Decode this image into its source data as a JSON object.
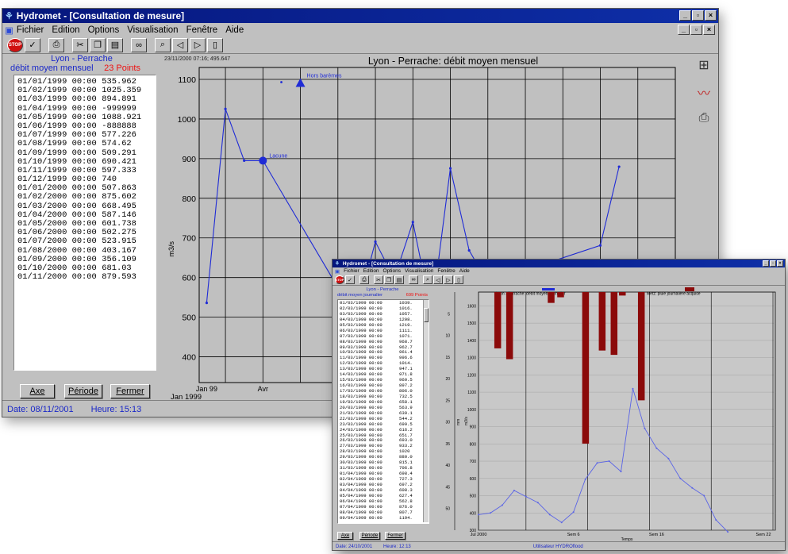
{
  "win1": {
    "title": "Hydromet - [Consultation de mesure]",
    "menu": [
      "Fichier",
      "Edition",
      "Options",
      "Visualisation",
      "Fenêtre",
      "Aide"
    ],
    "toolbar_icons": [
      "stop-icon",
      "check-icon",
      "print-icon",
      "cut-icon",
      "copy-icon",
      "paste-icon",
      "binoculars-icon",
      "zoom-icon",
      "back-icon",
      "forward-icon",
      "page-icon"
    ],
    "stop_label": "STOP",
    "cursor_readout": "23/11/2000 07:16; 495.647",
    "station": "Lyon - Perrache",
    "measure": "débit moyen mensuel",
    "points": "23 Points",
    "list": [
      {
        "date": "01/01/1999 00:00",
        "value": "535.962"
      },
      {
        "date": "01/02/1999 00:00",
        "value": "1025.359"
      },
      {
        "date": "01/03/1999 00:00",
        "value": "894.891"
      },
      {
        "date": "01/04/1999 00:00",
        "value": "-999999"
      },
      {
        "date": "01/05/1999 00:00",
        "value": "1088.921"
      },
      {
        "date": "01/06/1999 00:00",
        "value": "-888888"
      },
      {
        "date": "01/07/1999 00:00",
        "value": "577.226"
      },
      {
        "date": "01/08/1999 00:00",
        "value": "574.62"
      },
      {
        "date": "01/09/1999 00:00",
        "value": "509.291"
      },
      {
        "date": "01/10/1999 00:00",
        "value": "690.421"
      },
      {
        "date": "01/11/1999 00:00",
        "value": "597.333"
      },
      {
        "date": "01/12/1999 00:00",
        "value": "740"
      },
      {
        "date": "01/01/2000 00:00",
        "value": "507.863"
      },
      {
        "date": "01/02/2000 00:00",
        "value": "875.602"
      },
      {
        "date": "01/03/2000 00:00",
        "value": "668.495"
      },
      {
        "date": "01/04/2000 00:00",
        "value": "587.146"
      },
      {
        "date": "01/05/2000 00:00",
        "value": "601.738"
      },
      {
        "date": "01/06/2000 00:00",
        "value": "502.275"
      },
      {
        "date": "01/07/2000 00:00",
        "value": "523.915"
      },
      {
        "date": "01/08/2000 00:00",
        "value": "403.167"
      },
      {
        "date": "01/09/2000 00:00",
        "value": "356.109"
      },
      {
        "date": "01/10/2000 00:00",
        "value": "681.03"
      },
      {
        "date": "01/11/2000 00:00",
        "value": "879.593"
      }
    ],
    "buttons": {
      "axe": "Axe",
      "periode": "Période",
      "fermer": "Fermer"
    },
    "status": {
      "date": "Date: 08/11/2001",
      "heure": "Heure: 15:13"
    }
  },
  "win2": {
    "title": "Hydromet - [Consultation de mesure]",
    "menu": [
      "Fichier",
      "Edition",
      "Options",
      "Visualisation",
      "Fenêtre",
      "Aide"
    ],
    "stop_label": "STOP",
    "station": "Lyon - Perrache",
    "measure": "débit moyen journalier",
    "points": "699 Points",
    "list": [
      {
        "date": "01/03/1999 00:00",
        "value": "1039."
      },
      {
        "date": "02/03/1999 00:00",
        "value": "1016."
      },
      {
        "date": "03/03/1999 00:00",
        "value": "1057."
      },
      {
        "date": "04/03/1999 00:00",
        "value": "1208."
      },
      {
        "date": "05/03/1999 00:00",
        "value": "1219."
      },
      {
        "date": "06/03/1999 00:00",
        "value": "1111."
      },
      {
        "date": "07/03/1999 00:00",
        "value": "1071."
      },
      {
        "date": "08/03/1999 00:00",
        "value": "968.7"
      },
      {
        "date": "09/03/1999 00:00",
        "value": "962.7"
      },
      {
        "date": "10/03/1999 00:00",
        "value": "961.4"
      },
      {
        "date": "11/03/1999 00:00",
        "value": "996.6"
      },
      {
        "date": "12/03/1999 00:00",
        "value": "1014."
      },
      {
        "date": "13/03/1999 00:00",
        "value": "947.1"
      },
      {
        "date": "14/03/1999 00:00",
        "value": "971.8"
      },
      {
        "date": "15/03/1999 00:00",
        "value": "960.5"
      },
      {
        "date": "16/03/1999 00:00",
        "value": "897.2"
      },
      {
        "date": "17/03/1999 00:00",
        "value": "806.0"
      },
      {
        "date": "18/03/1999 00:00",
        "value": "732.5"
      },
      {
        "date": "19/03/1999 00:00",
        "value": "658.1"
      },
      {
        "date": "20/03/1999 00:00",
        "value": "563.9"
      },
      {
        "date": "21/03/1999 00:00",
        "value": "639.1"
      },
      {
        "date": "22/03/1999 00:00",
        "value": "544.2"
      },
      {
        "date": "23/03/1999 00:00",
        "value": "699.5"
      },
      {
        "date": "24/03/1999 00:00",
        "value": "616.2"
      },
      {
        "date": "25/03/1999 00:00",
        "value": "651.7"
      },
      {
        "date": "26/03/1999 00:00",
        "value": "693.0"
      },
      {
        "date": "27/03/1999 00:00",
        "value": "933.2"
      },
      {
        "date": "28/03/1999 00:00",
        "value": "1020"
      },
      {
        "date": "29/03/1999 00:00",
        "value": "880.0"
      },
      {
        "date": "30/03/1999 00:00",
        "value": "815.1"
      },
      {
        "date": "31/03/1999 00:00",
        "value": "706.8"
      },
      {
        "date": "01/04/1999 00:00",
        "value": "698.4"
      },
      {
        "date": "02/04/1999 00:00",
        "value": "727.3"
      },
      {
        "date": "03/04/1999 00:00",
        "value": "697.2"
      },
      {
        "date": "04/04/1999 00:00",
        "value": "608.3"
      },
      {
        "date": "05/04/1999 00:00",
        "value": "627.4"
      },
      {
        "date": "06/04/1999 00:00",
        "value": "562.8"
      },
      {
        "date": "07/04/1999 00:00",
        "value": "876.0"
      },
      {
        "date": "08/04/1999 00:00",
        "value": "807.7"
      },
      {
        "date": "09/04/1999 00:00",
        "value": "1194."
      }
    ],
    "buttons": {
      "axe": "Axe",
      "periode": "Période",
      "fermer": "Fermer"
    },
    "status": {
      "date": "Date: 24/10/2001",
      "heure": "Heure: 12:13",
      "user": "Utilisateur HYDROflood"
    }
  },
  "chart_data": [
    {
      "type": "line",
      "title": "Lyon - Perrache: débit moyen mensuel",
      "ylabel": "m3/s",
      "ylim": [
        335,
        1130
      ],
      "yticks": [
        400,
        500,
        600,
        700,
        800,
        900,
        1000,
        1100
      ],
      "x_start_label": "Jan 1999",
      "x_ticks": [
        {
          "month": 0,
          "label": "Jan 99"
        },
        {
          "month": 3,
          "label": "Avr"
        }
      ],
      "x_range_months": [
        -0.4,
        25
      ],
      "series": [
        {
          "points": [
            {
              "month": 0,
              "value": 535.962
            },
            {
              "month": 1,
              "value": 1025.359
            },
            {
              "month": 2,
              "value": 894.891
            },
            {
              "month": 3,
              "value": 894.891
            },
            {
              "month": 7,
              "value": 574.62
            },
            {
              "month": 8,
              "value": 509.291
            },
            {
              "month": 9,
              "value": 690.421
            },
            {
              "month": 10,
              "value": 597.333
            },
            {
              "month": 11,
              "value": 740
            },
            {
              "month": 12,
              "value": 507.863
            },
            {
              "month": 13,
              "value": 875.602
            },
            {
              "month": 14,
              "value": 668.495
            },
            {
              "month": 15,
              "value": 587.146
            },
            {
              "month": 21,
              "value": 681.03
            },
            {
              "month": 22,
              "value": 879.593
            }
          ]
        }
      ],
      "annotations": [
        {
          "text": "Lacune",
          "month": 3,
          "value": 894.891,
          "marker": "circle"
        },
        {
          "text": "Hors barèmes",
          "month": 5,
          "value": 1088.921,
          "marker": "triangle"
        }
      ],
      "colors": {
        "line": "#1f2bd6",
        "grid": "#000000",
        "background": "#c0c0c0"
      }
    },
    {
      "type": "bar",
      "legend": [
        "Lyon - Perrache: débit moyen journalier",
        "Metz: pluie journalière acquise"
      ],
      "ylabel": "m3/s",
      "ylim": [
        300,
        1680
      ],
      "yticks": [
        300,
        400,
        500,
        600,
        700,
        800,
        900,
        1000,
        1100,
        1200,
        1300,
        1400,
        1500,
        1600
      ],
      "y2label": "mm",
      "y2ticks": [
        5,
        10,
        15,
        20,
        25,
        30,
        35,
        40,
        45,
        50
      ],
      "y2lim": [
        0,
        55
      ],
      "x_ticks": [
        {
          "day": 0,
          "label": "Jul 2000"
        },
        {
          "day": 8,
          "label": "Sem 6"
        },
        {
          "day": 15,
          "label": "Sem 16"
        },
        {
          "day": 24,
          "label": "Sem 22"
        }
      ],
      "xlabel": "Temps",
      "x_range_days": [
        0,
        25
      ],
      "series": [
        {
          "points": [
            {
              "day": 0,
              "value": 390
            },
            {
              "day": 1,
              "value": 400
            },
            {
              "day": 2,
              "value": 445
            },
            {
              "day": 3,
              "value": 530
            },
            {
              "day": 4,
              "value": 495
            },
            {
              "day": 5,
              "value": 460
            },
            {
              "day": 6,
              "value": 390
            },
            {
              "day": 7,
              "value": 345
            },
            {
              "day": 8,
              "value": 405
            },
            {
              "day": 9,
              "value": 595
            },
            {
              "day": 10,
              "value": 690
            },
            {
              "day": 11,
              "value": 700
            },
            {
              "day": 12,
              "value": 640
            },
            {
              "day": 13,
              "value": 1120
            },
            {
              "day": 14,
              "value": 890
            },
            {
              "day": 15,
              "value": 775
            },
            {
              "day": 16,
              "value": 715
            },
            {
              "day": 17,
              "value": 600
            },
            {
              "day": 18,
              "value": 545
            },
            {
              "day": 19,
              "value": 500
            },
            {
              "day": 20,
              "value": 360
            },
            {
              "day": 21,
              "value": 290
            }
          ]
        },
        {
          "bars": [
            {
              "day": 1.6,
              "value": 13
            },
            {
              "day": 2.6,
              "value": 15.5
            },
            {
              "day": 6.1,
              "value": 2.5
            },
            {
              "day": 6.9,
              "value": 1.2
            },
            {
              "day": 9.0,
              "value": 35
            },
            {
              "day": 10.4,
              "value": 13.5
            },
            {
              "day": 11.4,
              "value": 14.5
            },
            {
              "day": 12.1,
              "value": 0.8
            },
            {
              "day": 13.7,
              "value": 25
            }
          ]
        }
      ],
      "colors": {
        "line": "#5a64e6",
        "bars": "#8b0a0a",
        "grid": "#000000",
        "background": "#c8c8c8"
      }
    }
  ]
}
